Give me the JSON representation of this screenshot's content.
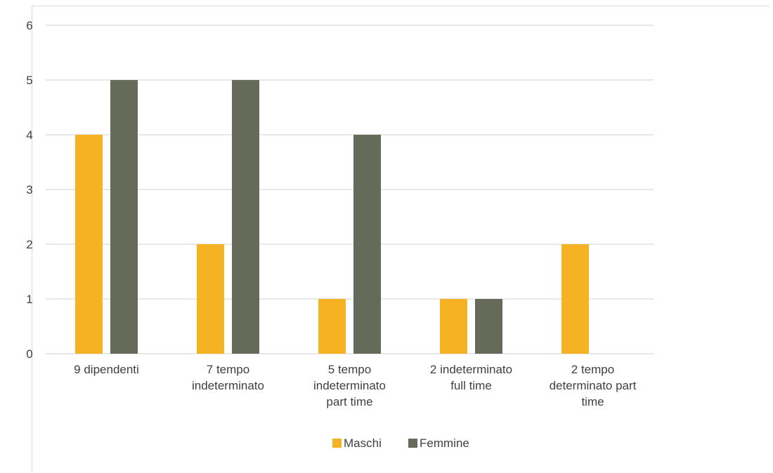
{
  "chart_data": {
    "type": "bar",
    "categories": [
      [
        "9 dipendenti"
      ],
      [
        "7 tempo",
        "indeterminato"
      ],
      [
        "5 tempo",
        "indeterminato",
        "part time"
      ],
      [
        "2 indeterminato",
        "full time"
      ],
      [
        "2 tempo",
        "determinato part",
        "time"
      ]
    ],
    "series": [
      {
        "name": "Maschi",
        "color": "#f5b323",
        "values": [
          4,
          2,
          1,
          1,
          2
        ]
      },
      {
        "name": "Femmine",
        "color": "#666a58",
        "values": [
          5,
          5,
          4,
          1,
          0
        ]
      }
    ],
    "ylim": [
      0,
      6
    ],
    "yticks": [
      "0",
      "1",
      "2",
      "3",
      "4",
      "5",
      "6"
    ],
    "grid": true,
    "legend": "bottom",
    "gridColor": "#d9d9d9"
  }
}
